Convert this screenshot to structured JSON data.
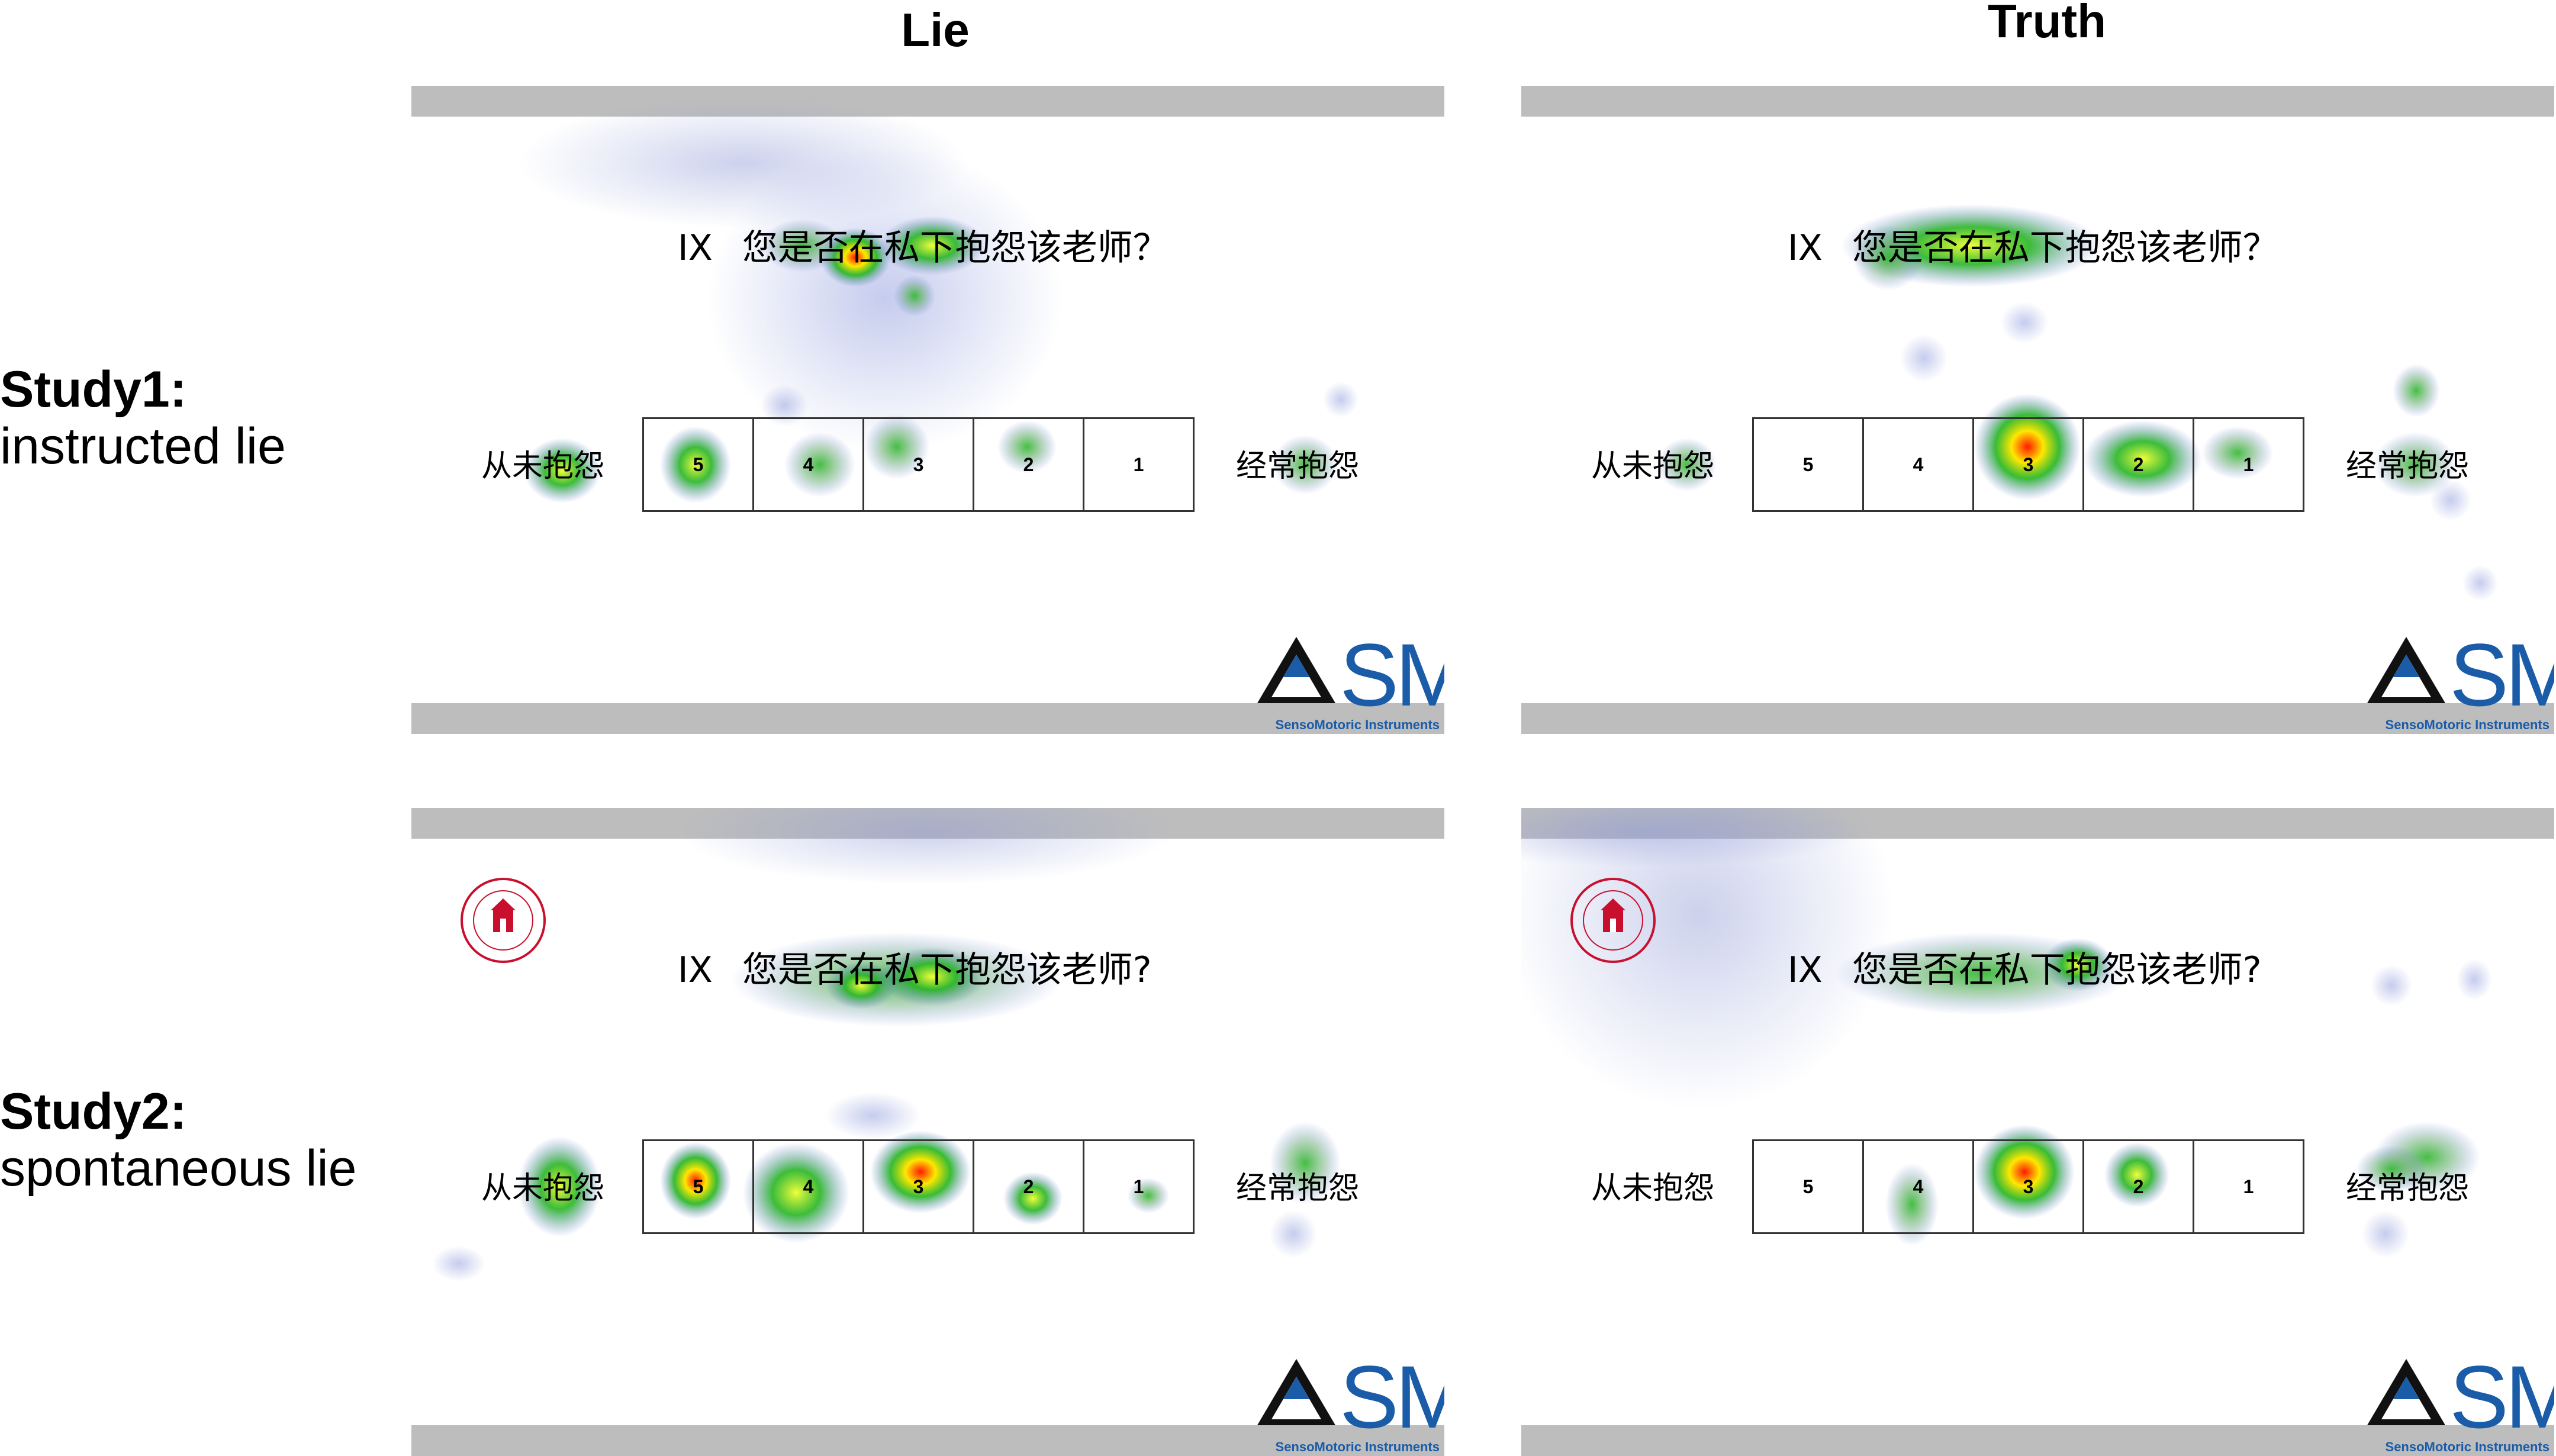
{
  "columns": {
    "lie": "Lie",
    "truth": "Truth"
  },
  "rows": {
    "study1": {
      "title": "Study1:",
      "subtitle": "instructed lie"
    },
    "study2": {
      "title": "Study2:",
      "subtitle": "spontaneous lie"
    }
  },
  "stimulus": {
    "roman": "IX",
    "question_study1": "您是否在私下抱怨该老师？",
    "question_study2": "您是否在私下抱怨该老师?",
    "anchor_left": "从未抱怨",
    "anchor_right": "经常抱怨",
    "scale": [
      "5",
      "4",
      "3",
      "2",
      "1"
    ]
  },
  "logo": {
    "brand": "SMI",
    "sub": "SensoMotoric Instruments"
  },
  "colors": {
    "bar": "#bdbdbd",
    "brand": "#1a5ca8",
    "seal": "#c8102e",
    "heat_hot": "#ff0000",
    "heat_mid": "#ffff00",
    "heat_low": "#00b000",
    "heat_haze": "#9fa8dc"
  }
}
